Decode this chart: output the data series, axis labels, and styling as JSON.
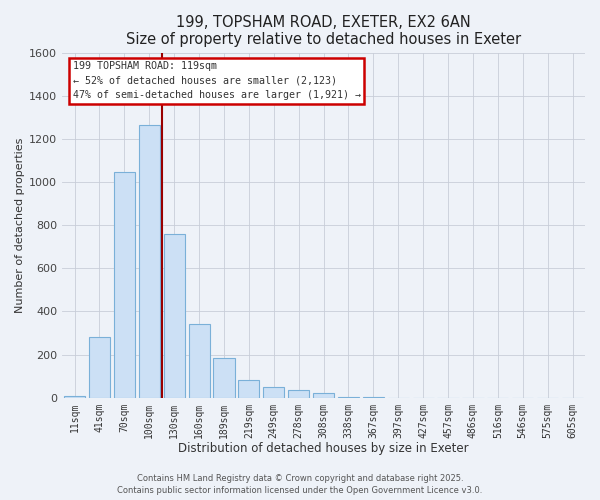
{
  "title": "199, TOPSHAM ROAD, EXETER, EX2 6AN",
  "subtitle": "Size of property relative to detached houses in Exeter",
  "xlabel": "Distribution of detached houses by size in Exeter",
  "ylabel": "Number of detached properties",
  "bar_color": "#cce0f5",
  "bar_edge_color": "#7ab0d8",
  "background_color": "#eef2f8",
  "grid_color": "#c8cdd8",
  "categories": [
    "11sqm",
    "41sqm",
    "70sqm",
    "100sqm",
    "130sqm",
    "160sqm",
    "189sqm",
    "219sqm",
    "249sqm",
    "278sqm",
    "308sqm",
    "338sqm",
    "367sqm",
    "397sqm",
    "427sqm",
    "457sqm",
    "486sqm",
    "516sqm",
    "546sqm",
    "575sqm",
    "605sqm"
  ],
  "values": [
    10,
    280,
    1045,
    1265,
    760,
    340,
    185,
    80,
    50,
    35,
    22,
    5,
    2,
    1,
    0,
    0,
    0,
    0,
    0,
    0,
    0
  ],
  "ylim": [
    0,
    1600
  ],
  "yticks": [
    0,
    200,
    400,
    600,
    800,
    1000,
    1200,
    1400,
    1600
  ],
  "vline_x_index": 3.5,
  "vline_color": "#990000",
  "annotation_title": "199 TOPSHAM ROAD: 119sqm",
  "annotation_line1": "← 52% of detached houses are smaller (2,123)",
  "annotation_line2": "47% of semi-detached houses are larger (1,921) →",
  "annotation_box_color": "#ffffff",
  "annotation_box_edge": "#cc0000",
  "footnote1": "Contains HM Land Registry data © Crown copyright and database right 2025.",
  "footnote2": "Contains public sector information licensed under the Open Government Licence v3.0."
}
